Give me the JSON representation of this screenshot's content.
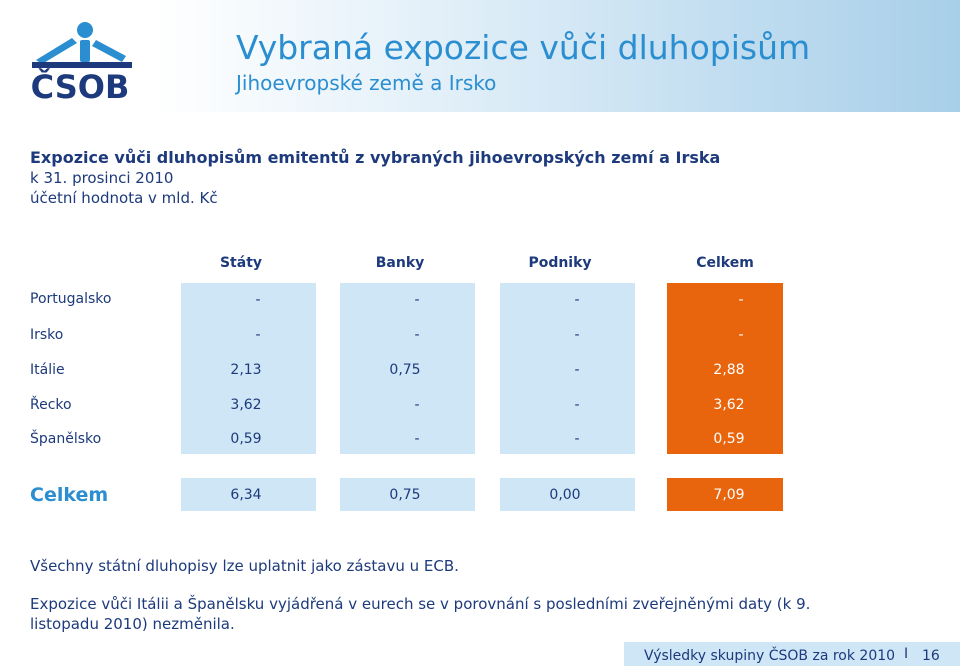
{
  "header": {
    "logo_text": "ČSOB",
    "title": "Vybraná expozice vůči dluhopisům",
    "subtitle": "Jihoevropské země a Irsko"
  },
  "intro": {
    "heading": "Expozice vůči dluhopisům emitentů z vybraných jihoevropských zemí a Irska",
    "line2": "k 31. prosinci 2010",
    "line3": "účetní hodnota v mld. Kč"
  },
  "table": {
    "columns": [
      "Státy",
      "Banky",
      "Podniky",
      "Celkem"
    ],
    "rows": [
      {
        "label": "Portugalsko",
        "values": [
          "-",
          "-",
          "-",
          "-"
        ]
      },
      {
        "label": "Irsko",
        "values": [
          "-",
          "-",
          "-",
          "-"
        ]
      },
      {
        "label": "Itálie",
        "values": [
          "2,13",
          "0,75",
          "-",
          "2,88"
        ]
      },
      {
        "label": "Řecko",
        "values": [
          "3,62",
          "-",
          "-",
          "3,62"
        ]
      },
      {
        "label": "Španělsko",
        "values": [
          "0,59",
          "-",
          "-",
          "0,59"
        ]
      }
    ],
    "total": {
      "label": "Celkem",
      "values": [
        "6,34",
        "0,75",
        "0,00",
        "7,09"
      ]
    }
  },
  "notes": {
    "note1": "Všechny státní dluhopisy lze uplatnit jako zástavu u ECB.",
    "note2_line1": "Expozice vůči Itálii a Španělsku vyjádřená v eurech se v porovnání s posledními zveřejněnými daty (k 9.",
    "note2_line2": "listopadu 2010) nezměnila."
  },
  "footer": {
    "text": "Výsledky skupiny ČSOB za rok 2010",
    "separator": "I",
    "page": "16"
  },
  "colors": {
    "accent_blue": "#2a8ed0",
    "text_navy": "#1d3a7c",
    "orange": "#e8650e",
    "light_blue": "#cfe6f7"
  }
}
